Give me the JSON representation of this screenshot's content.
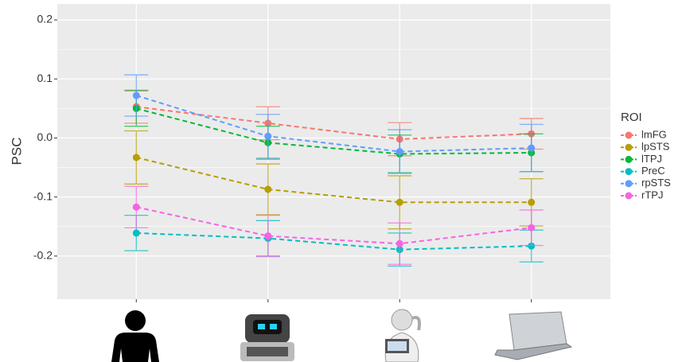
{
  "chart_data": {
    "type": "line",
    "y_label": "PSC",
    "legend_title": "ROI",
    "categories": [
      null,
      null,
      null,
      null
    ],
    "ylim": [
      -0.273,
      0.227
    ],
    "yticks": [
      0.2,
      0.1,
      {
        "value": 0,
        "label": "0.0"
      },
      -0.1,
      -0.2
    ],
    "grid": true,
    "line_style": "dashed",
    "series": [
      {
        "name": "lmFG",
        "color": "#F8766D",
        "values": [
          0.053,
          0.025,
          -0.002,
          0.007
        ],
        "errors": [
          0.028,
          0.028,
          0.028,
          0.026
        ]
      },
      {
        "name": "lpSTS",
        "color": "#B79F00",
        "values": [
          -0.033,
          -0.087,
          -0.109,
          -0.109
        ],
        "errors": [
          0.045,
          0.043,
          0.045,
          0.04
        ]
      },
      {
        "name": "lTPJ",
        "color": "#00BA38",
        "values": [
          0.05,
          -0.008,
          -0.027,
          -0.025
        ],
        "errors": [
          0.03,
          0.028,
          0.032,
          0.032
        ]
      },
      {
        "name": "PreC",
        "color": "#00BFC4",
        "values": [
          -0.161,
          -0.17,
          -0.189,
          -0.183
        ],
        "errors": [
          0.03,
          0.03,
          0.028,
          0.027
        ]
      },
      {
        "name": "rpSTS",
        "color": "#619CFF",
        "values": [
          0.072,
          0.003,
          -0.023,
          -0.017
        ],
        "errors": [
          0.035,
          0.037,
          0.037,
          0.04
        ]
      },
      {
        "name": "rTPJ",
        "color": "#F564E3",
        "values": [
          -0.117,
          -0.166,
          -0.179,
          -0.152
        ],
        "errors": [
          0.035,
          0.035,
          0.035,
          0.03
        ]
      }
    ]
  }
}
